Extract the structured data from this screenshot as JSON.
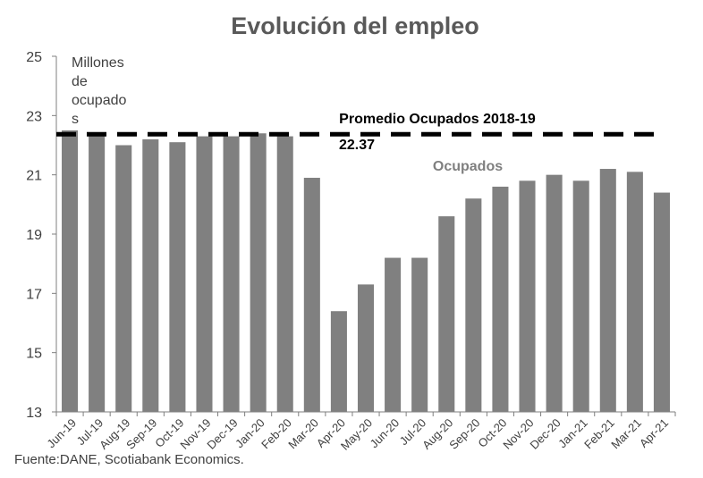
{
  "chart_data": {
    "type": "bar",
    "title": "Evolución del empleo",
    "unit_label_lines": [
      "Millones",
      "de",
      "ocupado",
      "s"
    ],
    "categories": [
      "Jun-19",
      "Jul-19",
      "Aug-19",
      "Sep-19",
      "Oct-19",
      "Nov-19",
      "Dec-19",
      "Jan-20",
      "Feb-20",
      "Mar-20",
      "Apr-20",
      "May-20",
      "Jun-20",
      "Jul-20",
      "Aug-20",
      "Sep-20",
      "Oct-20",
      "Nov-20",
      "Dec-20",
      "Jan-21",
      "Feb-21",
      "Mar-21",
      "Apr-21"
    ],
    "series": [
      {
        "name": "Ocupados",
        "values": [
          22.5,
          22.4,
          22.0,
          22.2,
          22.1,
          22.3,
          22.3,
          22.4,
          22.3,
          20.9,
          16.4,
          17.3,
          18.2,
          18.2,
          19.6,
          20.2,
          20.6,
          20.8,
          21.0,
          20.8,
          21.2,
          21.1,
          20.4
        ]
      }
    ],
    "reference_line": {
      "label": "Promedio Ocupados 2018-19",
      "value": 22.37,
      "value_label": "22.37"
    },
    "ylim": [
      13,
      25
    ],
    "yticks": [
      13,
      15,
      17,
      19,
      21,
      23,
      25
    ],
    "xlabel": "",
    "ylabel": "",
    "grid": false,
    "legend": "none",
    "bar_color": "#808080",
    "reference_line_color": "#000000"
  },
  "source": "Fuente:DANE, Scotiabank Economics."
}
